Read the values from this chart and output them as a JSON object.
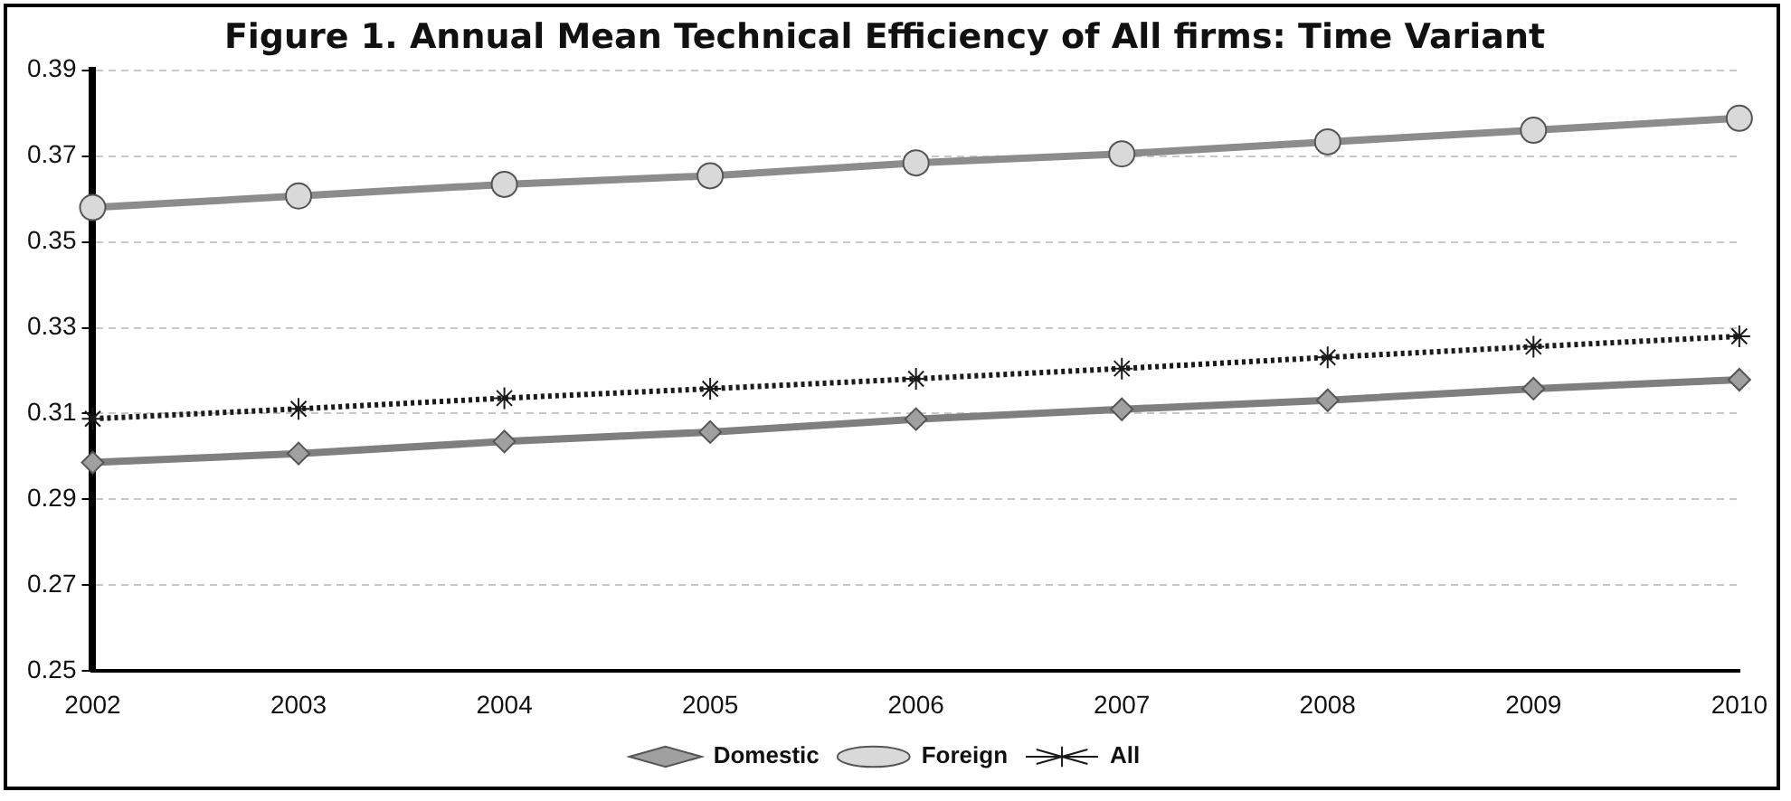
{
  "chart_data": {
    "type": "line",
    "title": "Figure 1. Annual Mean Technical Efficiency of All firms: Time Variant",
    "categories": [
      "2002",
      "2003",
      "2004",
      "2005",
      "2006",
      "2007",
      "2008",
      "2009",
      "2010"
    ],
    "series": [
      {
        "name": "Domestic",
        "color": "#7f7f7f",
        "marker": "diamond",
        "line_style": "solid",
        "values": [
          0.2986,
          0.3007,
          0.3035,
          0.3057,
          0.3087,
          0.311,
          0.3131,
          0.3158,
          0.3179
        ]
      },
      {
        "name": "Foreign",
        "color": "#8c8c8c",
        "marker": "circle",
        "line_style": "solid",
        "values": [
          0.358,
          0.3607,
          0.3634,
          0.3654,
          0.3684,
          0.3705,
          0.3733,
          0.376,
          0.3788
        ]
      },
      {
        "name": "All",
        "color": "#1a1a1a",
        "marker": "cross",
        "line_style": "dotted",
        "values": [
          0.3088,
          0.3111,
          0.3136,
          0.3158,
          0.3181,
          0.3205,
          0.3231,
          0.3256,
          0.328
        ]
      }
    ],
    "ylim": [
      0.25,
      0.39
    ],
    "yticks": [
      0.25,
      0.27,
      0.29,
      0.31,
      0.33,
      0.35,
      0.37,
      0.39
    ],
    "grid": "y",
    "legend": "bottom"
  }
}
